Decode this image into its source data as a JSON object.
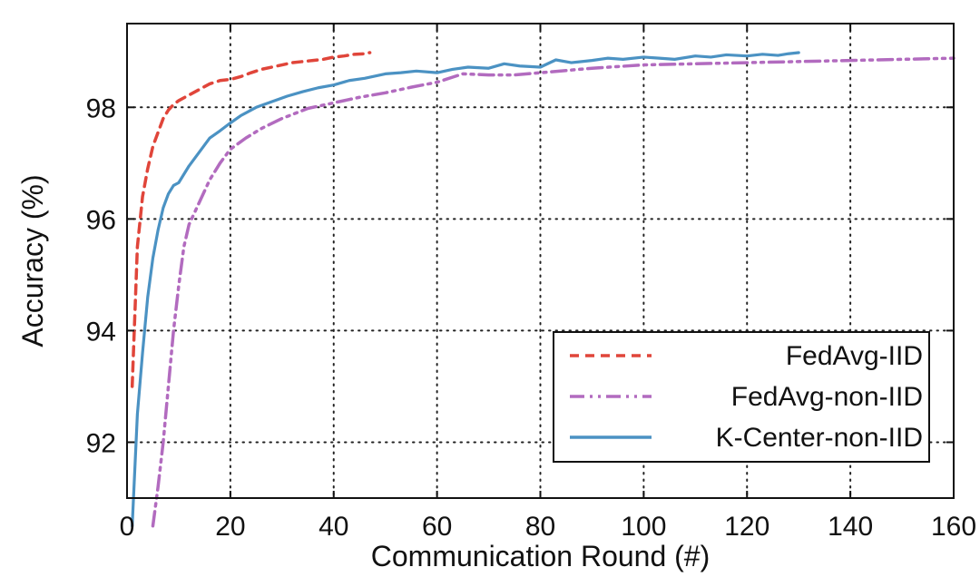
{
  "chart_data": {
    "type": "line",
    "title": "",
    "xlabel": "Communication Round (#)",
    "ylabel": "Accuracy (%)",
    "xlim": [
      0,
      160
    ],
    "ylim": [
      91,
      99.5
    ],
    "xticks": [
      0,
      20,
      40,
      60,
      80,
      100,
      120,
      140,
      160
    ],
    "yticks": [
      92,
      94,
      96,
      98
    ],
    "grid": true,
    "legend_position": "bottom-right",
    "series": [
      {
        "name": "FedAvg-IID",
        "color": "#e0453a",
        "style": "dashed",
        "x": [
          1,
          2,
          3,
          4,
          5,
          6,
          7,
          8,
          9,
          10,
          12,
          14,
          16,
          18,
          20,
          22,
          24,
          26,
          28,
          30,
          32,
          34,
          36,
          38,
          40,
          42,
          44,
          46,
          47
        ],
        "y": [
          93.0,
          95.5,
          96.4,
          96.9,
          97.3,
          97.55,
          97.8,
          97.95,
          98.05,
          98.12,
          98.22,
          98.32,
          98.42,
          98.48,
          98.5,
          98.55,
          98.62,
          98.68,
          98.72,
          98.76,
          98.8,
          98.82,
          98.84,
          98.86,
          98.9,
          98.92,
          98.95,
          98.96,
          98.98
        ]
      },
      {
        "name": "FedAvg-non-IID",
        "color": "#b26bbf",
        "style": "dash-dot-dot",
        "x": [
          5,
          6,
          7,
          8,
          9,
          10,
          11,
          12,
          14,
          16,
          18,
          20,
          23,
          26,
          30,
          35,
          40,
          45,
          50,
          55,
          60,
          65,
          70,
          75,
          80,
          90,
          100,
          110,
          120,
          130,
          140,
          150,
          160
        ],
        "y": [
          90.5,
          91.2,
          92.0,
          93.0,
          94.0,
          94.8,
          95.5,
          95.9,
          96.3,
          96.7,
          97.0,
          97.25,
          97.45,
          97.62,
          97.8,
          97.98,
          98.08,
          98.18,
          98.26,
          98.36,
          98.45,
          98.6,
          98.58,
          98.58,
          98.62,
          98.7,
          98.76,
          98.78,
          98.8,
          98.82,
          98.84,
          98.86,
          98.88
        ]
      },
      {
        "name": "K-Center-non-IID",
        "color": "#4b92c3",
        "style": "solid",
        "x": [
          1,
          2,
          3,
          4,
          5,
          6,
          7,
          8,
          9,
          10,
          12,
          14,
          16,
          18,
          20,
          22,
          25,
          28,
          31,
          34,
          37,
          40,
          43,
          46,
          50,
          53,
          56,
          60,
          63,
          66,
          70,
          73,
          76,
          80,
          83,
          86,
          90,
          93,
          96,
          100,
          103,
          106,
          110,
          113,
          116,
          120,
          123,
          126,
          128,
          130
        ],
        "y": [
          90.5,
          92.5,
          93.6,
          94.6,
          95.3,
          95.8,
          96.2,
          96.45,
          96.6,
          96.65,
          96.95,
          97.2,
          97.45,
          97.58,
          97.72,
          97.85,
          98.0,
          98.1,
          98.2,
          98.28,
          98.35,
          98.4,
          98.48,
          98.52,
          98.6,
          98.62,
          98.65,
          98.62,
          98.68,
          98.72,
          98.7,
          98.78,
          98.74,
          98.72,
          98.85,
          98.8,
          98.84,
          98.88,
          98.86,
          98.9,
          98.88,
          98.86,
          98.92,
          98.9,
          98.94,
          98.92,
          98.95,
          98.93,
          98.96,
          98.98
        ]
      }
    ]
  }
}
